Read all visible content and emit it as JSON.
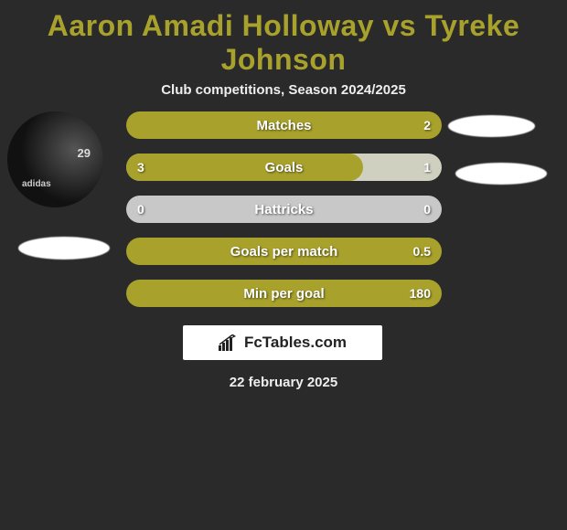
{
  "title": "Aaron Amadi Holloway vs Tyreke Johnson",
  "title_color": "#a8a22c",
  "subtitle": "Club competitions, Season 2024/2025",
  "jersey_number": "29",
  "jersey_brand": "adidas",
  "branding_text": "FcTables.com",
  "date": "22 february 2025",
  "colors": {
    "background": "#2a2a2a",
    "bar_primary": "#a8a22c",
    "bar_secondary": "#d0d0c0",
    "bar_neutral": "#c8c8c8",
    "text_white": "#ffffff"
  },
  "stats": [
    {
      "label": "Matches",
      "left_value": "",
      "right_value": "2",
      "fill_percent": 100,
      "fill_color": "#a8a22c",
      "bg_color": "#a8a22c"
    },
    {
      "label": "Goals",
      "left_value": "3",
      "right_value": "1",
      "fill_percent": 75,
      "fill_color": "#a8a22c",
      "bg_color": "#d0d0c0"
    },
    {
      "label": "Hattricks",
      "left_value": "0",
      "right_value": "0",
      "fill_percent": 0,
      "fill_color": "#a8a22c",
      "bg_color": "#c8c8c8"
    },
    {
      "label": "Goals per match",
      "left_value": "",
      "right_value": "0.5",
      "fill_percent": 100,
      "fill_color": "#a8a22c",
      "bg_color": "#a8a22c"
    },
    {
      "label": "Min per goal",
      "left_value": "",
      "right_value": "180",
      "fill_percent": 100,
      "fill_color": "#a8a22c",
      "bg_color": "#a8a22c"
    }
  ]
}
